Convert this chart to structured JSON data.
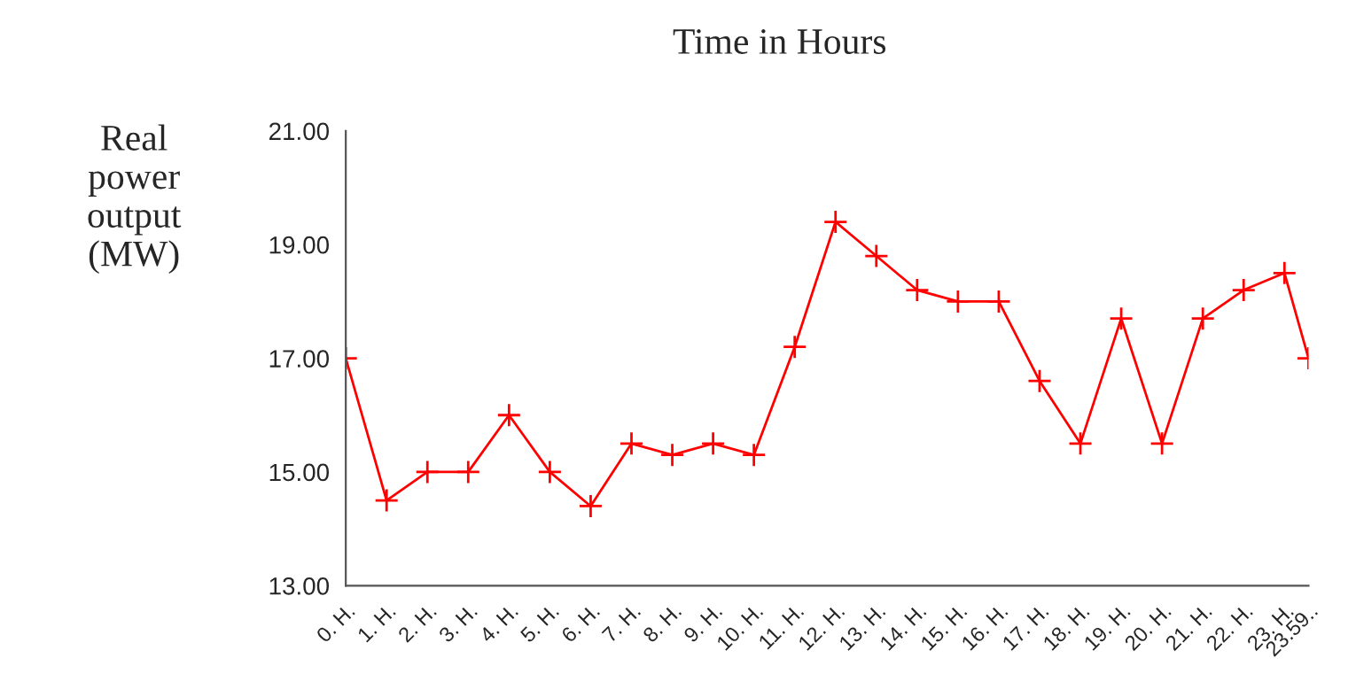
{
  "chart_data": {
    "type": "line",
    "title": "Time in Hours",
    "ylabel": "Real\npower\noutput\n(MW)",
    "x": [
      0,
      1,
      2,
      3,
      4,
      5,
      6,
      7,
      8,
      9,
      10,
      11,
      12,
      13,
      14,
      15,
      16,
      17,
      18,
      19,
      20,
      21,
      22,
      23,
      23.59
    ],
    "series": [
      {
        "color": "#ff0000",
        "values": [
          17.0,
          14.5,
          15.0,
          15.0,
          16.0,
          15.0,
          14.4,
          15.5,
          15.3,
          15.5,
          15.3,
          17.2,
          19.4,
          18.8,
          18.2,
          18.0,
          18.0,
          16.6,
          15.5,
          17.7,
          15.5,
          17.7,
          18.2,
          18.5,
          17.0
        ]
      }
    ],
    "xlim": [
      0,
      23.59
    ],
    "xticks": [
      {
        "value": 0,
        "label": "0. H."
      },
      {
        "value": 1,
        "label": "1. H."
      },
      {
        "value": 2,
        "label": "2. H."
      },
      {
        "value": 3,
        "label": "3. H."
      },
      {
        "value": 4,
        "label": "4. H."
      },
      {
        "value": 5,
        "label": "5. H."
      },
      {
        "value": 6,
        "label": "6. H."
      },
      {
        "value": 7,
        "label": "7. H."
      },
      {
        "value": 8,
        "label": "8. H."
      },
      {
        "value": 9,
        "label": "9. H."
      },
      {
        "value": 10,
        "label": "10. H."
      },
      {
        "value": 11,
        "label": "11. H."
      },
      {
        "value": 12,
        "label": "12. H."
      },
      {
        "value": 13,
        "label": "13. H."
      },
      {
        "value": 14,
        "label": "14. H."
      },
      {
        "value": 15,
        "label": "15. H."
      },
      {
        "value": 16,
        "label": "16. H."
      },
      {
        "value": 17,
        "label": "17. H."
      },
      {
        "value": 18,
        "label": "18. H."
      },
      {
        "value": 19,
        "label": "19. H."
      },
      {
        "value": 20,
        "label": "20. H."
      },
      {
        "value": 21,
        "label": "21. H."
      },
      {
        "value": 22,
        "label": "22. H."
      },
      {
        "value": 23,
        "label": "23. H."
      },
      {
        "value": 23.59,
        "label": "23.59.."
      }
    ],
    "ylim": [
      13,
      21
    ],
    "yticks": [
      {
        "value": 13,
        "label": "13.00"
      },
      {
        "value": 15,
        "label": "15.00"
      },
      {
        "value": 17,
        "label": "17.00"
      },
      {
        "value": 19,
        "label": "19.00"
      },
      {
        "value": 21,
        "label": "21.00"
      }
    ],
    "marker": "cross",
    "line_style": "solid",
    "grid": false,
    "legend": false
  }
}
